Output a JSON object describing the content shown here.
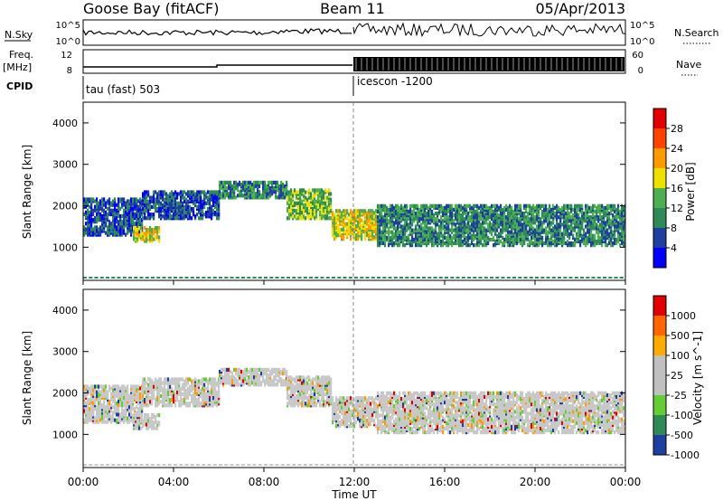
{
  "header": {
    "station": "Goose Bay (fitACF)",
    "beam": "Beam 11",
    "date": "05/Apr/2013"
  },
  "strip": {
    "nsky_label": "N.Sky",
    "nsky_ticks": [
      "10^5",
      "10^0"
    ],
    "nsearch_label": "N.Search",
    "nsearch_ticks": [
      "10^5",
      "10^0"
    ],
    "freq_label": "Freq.",
    "freq_unit": "[MHz]",
    "freq_ticks": [
      "12",
      "8"
    ],
    "nave_label": "Nave",
    "nave_ticks": [
      "60",
      "0"
    ],
    "cpid_label": "CPID",
    "cpid_segments": [
      {
        "start_hour": 0,
        "name": "tau (fast) 503"
      },
      {
        "start_hour": 12,
        "name": "icescon -1200"
      }
    ]
  },
  "power_panel": {
    "ylabel": "Slant Range [km]",
    "yticks": [
      "4000",
      "3000",
      "2000",
      "1000"
    ],
    "colorbar_label": "Power [dB]",
    "colorbar_ticks": [
      "28",
      "24",
      "20",
      "16",
      "12",
      "8",
      "4"
    ],
    "colors": [
      "#0000ff",
      "#1f3fa0",
      "#2e8b57",
      "#4caf50",
      "#f0e000",
      "#ff9900",
      "#ff4400",
      "#e00000"
    ]
  },
  "velocity_panel": {
    "ylabel": "Slant Range [km]",
    "yticks": [
      "4000",
      "3000",
      "2000",
      "1000"
    ],
    "colorbar_label": "Velocity [m s^-1]",
    "colorbar_ticks": [
      "1000",
      "500",
      "100",
      "25",
      "-25",
      "-100",
      "-500",
      "-1000"
    ],
    "colors": [
      "#1f3fa0",
      "#2e8b57",
      "#66cc33",
      "#c0c0c0",
      "#c0c0c0",
      "#ffaa00",
      "#ff6600",
      "#e00000"
    ]
  },
  "xaxis": {
    "label": "Time UT",
    "ticks": [
      "00:00",
      "04:00",
      "08:00",
      "12:00",
      "16:00",
      "20:00",
      "00:00"
    ]
  },
  "chart_data": {
    "type": "heatmap",
    "x_range_hours": [
      0,
      24
    ],
    "y_range_km": [
      200,
      4500
    ],
    "layers": [
      {
        "hour_start": 0.0,
        "hour_end": 2.6,
        "range_low_km": 1300,
        "range_high_km": 2200,
        "power_db": 8
      },
      {
        "hour_start": 2.6,
        "hour_end": 6.0,
        "range_low_km": 1700,
        "range_high_km": 2350,
        "power_db": 8
      },
      {
        "hour_start": 6.0,
        "hour_end": 9.0,
        "range_low_km": 2200,
        "range_high_km": 2600,
        "power_db": 10
      },
      {
        "hour_start": 9.0,
        "hour_end": 11.0,
        "range_low_km": 1700,
        "range_high_km": 2400,
        "power_db": 16
      },
      {
        "hour_start": 11.0,
        "hour_end": 13.0,
        "range_low_km": 1200,
        "range_high_km": 1900,
        "power_db": 18
      },
      {
        "hour_start": 13.0,
        "hour_end": 24.0,
        "range_low_km": 1050,
        "range_high_km": 2000,
        "power_db": 12
      },
      {
        "hour_start": 2.2,
        "hour_end": 3.4,
        "range_low_km": 1150,
        "range_high_km": 1500,
        "power_db": 20
      }
    ]
  }
}
